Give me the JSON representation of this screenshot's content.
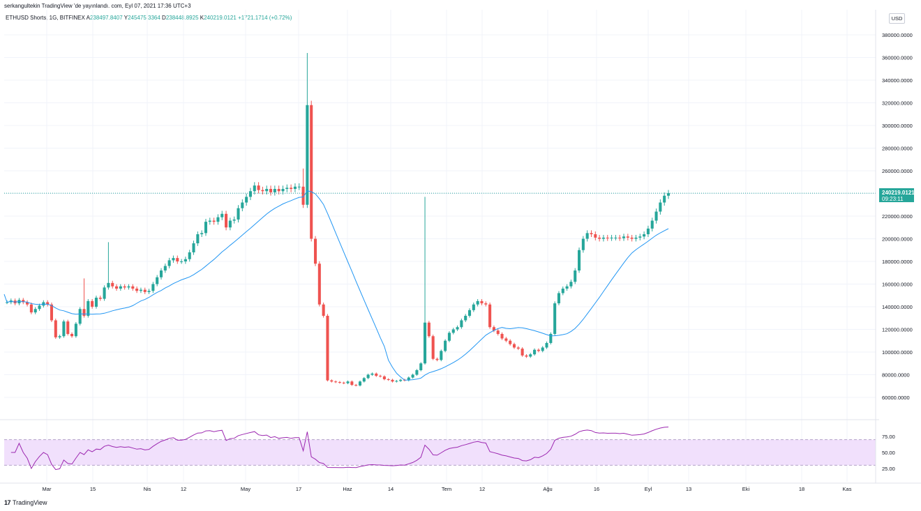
{
  "header": {
    "publish_line": "serkangultekin TradingView 'de yayınlandı. com, Eyl 07, 2021 17:36 UTC+3"
  },
  "currency_button": "USD",
  "legend": {
    "symbol": "ETHUSD Shorts, 1G, BITFINEX",
    "open_label": "A",
    "open_value": "238497.8407",
    "high_label": "Y",
    "high_value": "245475.3364",
    "low_label": "D",
    "low_value": "238448.8925",
    "close_label": "K",
    "close_value": "240219.0121",
    "change": "+1721.1714 (+0.72%)"
  },
  "price_badge": {
    "price": "240219.0121",
    "countdown": "09:23:11"
  },
  "footer": {
    "brand": "TradingView"
  },
  "colors": {
    "up": "#26a69a",
    "down": "#ef5350",
    "ma": "#2196f3",
    "rsi": "#9c27b0",
    "rsi_band": "#f1e0fc",
    "price_line": "#26a69a"
  },
  "chart_data": [
    {
      "type": "candlestick",
      "title": "ETHUSD Shorts, 1G, BITFINEX",
      "x_ticks": [
        "Mar",
        "15",
        "Nis",
        "12",
        "May",
        "17",
        "Haz",
        "14",
        "Tem",
        "12",
        "Ağu",
        "16",
        "Eyl",
        "13",
        "Eki",
        "18",
        "Kas"
      ],
      "y_ticks": [
        "380000.0000",
        "360000.0000",
        "340000.0000",
        "320000.0000",
        "300000.0000",
        "280000.0000",
        "260000.0000",
        "240000.0000",
        "220000.0000",
        "200000.0000",
        "180000.0000",
        "160000.0000",
        "140000.0000",
        "120000.0000",
        "100000.0000",
        "80000.0000",
        "60000.0000"
      ],
      "ylim": [
        45000,
        390000
      ],
      "grid": true,
      "last_price": 240219.0121,
      "closes": [
        144000,
        145500,
        143000,
        146000,
        144000,
        142000,
        135000,
        138000,
        141000,
        144000,
        142000,
        128000,
        113000,
        114000,
        127000,
        116000,
        114000,
        125000,
        138000,
        132000,
        145000,
        140000,
        148000,
        147000,
        157000,
        161000,
        158000,
        156000,
        158000,
        157000,
        158000,
        156000,
        154000,
        155000,
        153000,
        154000,
        160000,
        166000,
        172000,
        176000,
        181000,
        183000,
        180000,
        180000,
        182000,
        188000,
        196000,
        204000,
        205000,
        215000,
        216000,
        215000,
        219000,
        222000,
        210000,
        216000,
        217000,
        227000,
        232000,
        237000,
        242000,
        247000,
        243000,
        242000,
        244000,
        241000,
        244000,
        242000,
        244000,
        245000,
        244000,
        246000,
        246000,
        230000,
        318000,
        200000,
        178000,
        142000,
        132000,
        75000,
        74000,
        73500,
        73000,
        72500,
        74000,
        71000,
        70500,
        74000,
        77000,
        80000,
        81000,
        79000,
        78500,
        76000,
        75500,
        74000,
        74500,
        75500,
        75000,
        77500,
        80000,
        84000,
        90000,
        126000,
        114000,
        94000,
        93000,
        101000,
        110000,
        117000,
        120000,
        122000,
        128000,
        132000,
        137000,
        142000,
        145000,
        143000,
        142000,
        122000,
        119000,
        116000,
        112000,
        110000,
        107000,
        104000,
        103000,
        97000,
        96000,
        98000,
        102000,
        101000,
        104000,
        108000,
        116000,
        143000,
        152000,
        156000,
        158000,
        162000,
        172000,
        190000,
        200000,
        205000,
        204000,
        201000,
        200000,
        201000,
        200500,
        201000,
        201000,
        200500,
        202000,
        201000,
        200000,
        201000,
        202000,
        204000,
        209000,
        216000,
        224000,
        232000,
        238000,
        240219
      ],
      "series": [
        {
          "name": "ma",
          "label": "",
          "values": []
        },
        {
          "name": "rsi",
          "label": "",
          "values": []
        }
      ],
      "rsi_ticks": [
        "75.00",
        "50.00",
        "25.00"
      ],
      "rsi_ylim": [
        12,
        100
      ],
      "rsi_band": [
        30,
        70
      ]
    }
  ]
}
